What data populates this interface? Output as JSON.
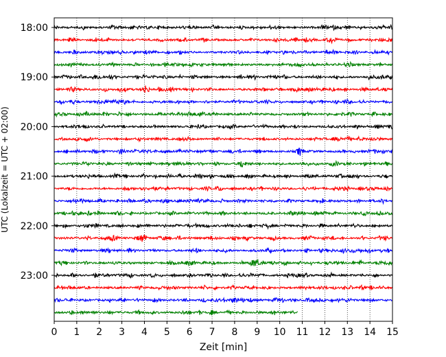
{
  "chart_data": {
    "type": "line",
    "title": "",
    "xlabel": "Zeit  [min]",
    "ylabel": "UTC (Lokalzeit = UTC + 02:00)",
    "xlim": [
      0,
      15
    ],
    "x_ticks": [
      "0",
      "1",
      "2",
      "3",
      "4",
      "5",
      "6",
      "7",
      "8",
      "9",
      "10",
      "11",
      "12",
      "13",
      "14",
      "15"
    ],
    "y_tick_labels": [
      "18:00",
      "19:00",
      "20:00",
      "21:00",
      "22:00",
      "23:00"
    ],
    "grid": "vertical dotted",
    "trace_colors": [
      "#000000",
      "#ff0000",
      "#0000ff",
      "#008000"
    ],
    "series": [
      {
        "start": "18:00",
        "color": "#000000",
        "x_end": 15
      },
      {
        "start": "18:15",
        "color": "#ff0000",
        "x_end": 15
      },
      {
        "start": "18:30",
        "color": "#0000ff",
        "x_end": 15
      },
      {
        "start": "18:45",
        "color": "#008000",
        "x_end": 15
      },
      {
        "start": "19:00",
        "color": "#000000",
        "x_end": 15
      },
      {
        "start": "19:15",
        "color": "#ff0000",
        "x_end": 15
      },
      {
        "start": "19:30",
        "color": "#0000ff",
        "x_end": 15
      },
      {
        "start": "19:45",
        "color": "#008000",
        "x_end": 15
      },
      {
        "start": "20:00",
        "color": "#000000",
        "x_end": 15
      },
      {
        "start": "20:15",
        "color": "#ff0000",
        "x_end": 15
      },
      {
        "start": "20:30",
        "color": "#0000ff",
        "x_end": 15
      },
      {
        "start": "20:45",
        "color": "#008000",
        "x_end": 15
      },
      {
        "start": "21:00",
        "color": "#000000",
        "x_end": 15
      },
      {
        "start": "21:15",
        "color": "#ff0000",
        "x_end": 15
      },
      {
        "start": "21:30",
        "color": "#0000ff",
        "x_end": 15
      },
      {
        "start": "21:45",
        "color": "#008000",
        "x_end": 15
      },
      {
        "start": "22:00",
        "color": "#000000",
        "x_end": 15
      },
      {
        "start": "22:15",
        "color": "#ff0000",
        "x_end": 15
      },
      {
        "start": "22:30",
        "color": "#0000ff",
        "x_end": 15
      },
      {
        "start": "22:45",
        "color": "#008000",
        "x_end": 15
      },
      {
        "start": "23:00",
        "color": "#000000",
        "x_end": 15
      },
      {
        "start": "23:15",
        "color": "#ff0000",
        "x_end": 15
      },
      {
        "start": "23:30",
        "color": "#0000ff",
        "x_end": 15
      },
      {
        "start": "23:45",
        "color": "#008000",
        "x_end": 10.8
      }
    ],
    "events": [
      {
        "row": "18:15",
        "x": 12.3
      },
      {
        "row": "19:15",
        "x": 4.05
      },
      {
        "row": "20:30",
        "x": 3.0
      },
      {
        "row": "20:30",
        "x": 10.9
      },
      {
        "row": "20:45",
        "x": 8.3
      },
      {
        "row": "22:15",
        "x": 2.6
      },
      {
        "row": "22:15",
        "x": 3.9
      },
      {
        "row": "22:45",
        "x": 8.9
      },
      {
        "row": "23:30",
        "x": 8.0
      }
    ]
  }
}
